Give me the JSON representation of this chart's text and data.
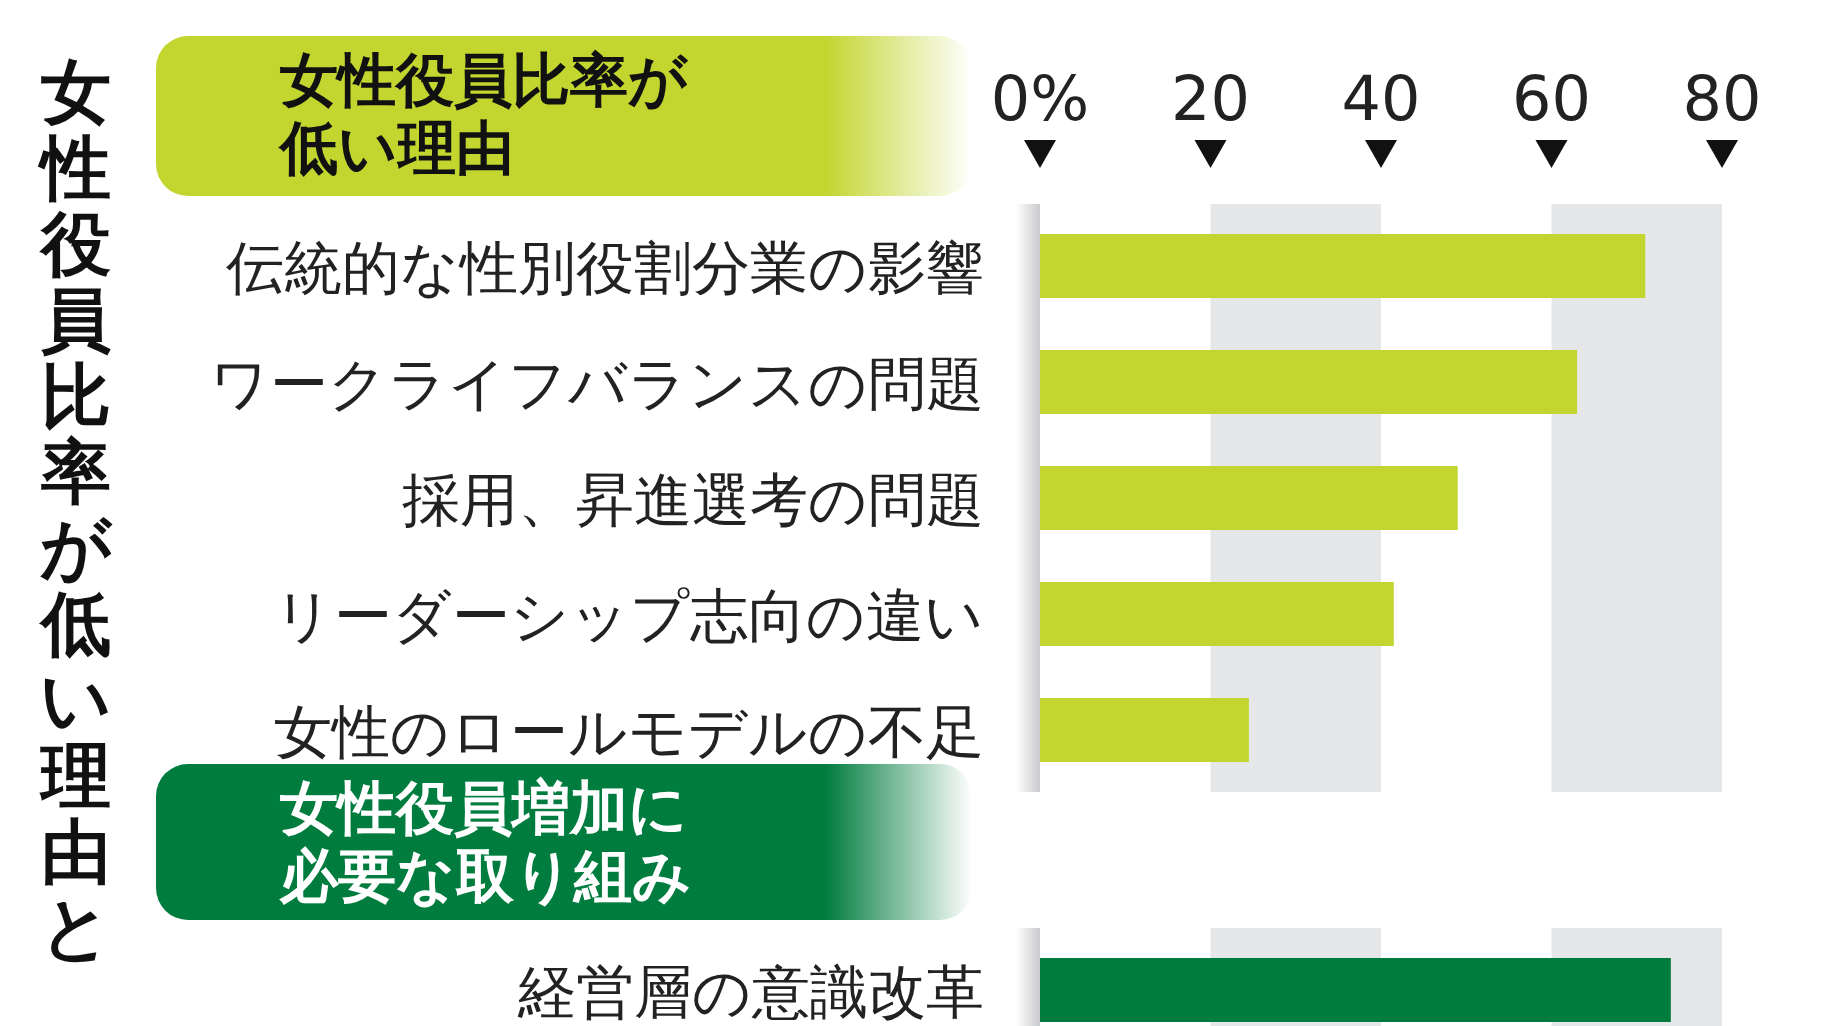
{
  "chart_data": [
    {
      "type": "bar",
      "orientation": "horizontal",
      "title": "女性役員比率が低い理由",
      "annotations": [
        "女性役員比率が低い理由と"
      ],
      "categories": [
        "伝統的な性別役割分業の影響",
        "ワークライフバランスの問題",
        "採用、昇進選考の問題",
        "リーダーシップ志向の違い",
        "女性のロールモデルの不足"
      ],
      "values": [
        71,
        63,
        49,
        41.5,
        24.5
      ],
      "color": "#c2d62f",
      "xlim": [
        0,
        80
      ],
      "xticks": [
        {
          "value": 0,
          "label": "0%"
        },
        20,
        40,
        60,
        80
      ],
      "bands": [
        {
          "axis": "x",
          "from": 20,
          "to": 40,
          "color": "#e6e7e9"
        },
        {
          "axis": "x",
          "from": 60,
          "to": 80,
          "color": "#e6e7e9"
        }
      ]
    },
    {
      "type": "bar",
      "orientation": "horizontal",
      "title": "女性役員増加に必要な取り組み",
      "categories": [
        "経営層の意識改革"
      ],
      "values": [
        74
      ],
      "color": "#007c3e",
      "xlim": [
        0,
        80
      ],
      "bands": [
        {
          "axis": "x",
          "from": 20,
          "to": 40,
          "color": "#e6e7e9"
        },
        {
          "axis": "x",
          "from": 60,
          "to": 80,
          "color": "#e6e7e9"
        }
      ]
    }
  ]
}
